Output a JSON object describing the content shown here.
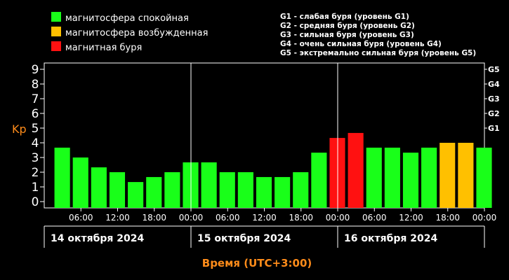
{
  "legend": {
    "items": [
      {
        "label": "магнитосфера спокойная",
        "color": "#19ff19"
      },
      {
        "label": "магнитосфера возбужденная",
        "color": "#ffc000"
      },
      {
        "label": "магнитная буря",
        "color": "#ff1111"
      }
    ],
    "storm_scale": [
      "G1 - слабая буря (уровень G1)",
      "G2 - средняя буря (уровень G2)",
      "G3 - сильная буря (уровень G3)",
      "G4 - очень сильная буря (уровень G4)",
      "G5 - экстремально сильная буря (уровень G5)"
    ]
  },
  "chart_data": {
    "type": "bar",
    "ylabel": "Kp",
    "xlabel": "Время (UTC+3:00)",
    "ylim": [
      0,
      9
    ],
    "y_ticks": [
      "0",
      "1",
      "2",
      "3",
      "4",
      "5",
      "6",
      "7",
      "8",
      "9"
    ],
    "right_ticks": [
      {
        "label": "G1",
        "y": 5
      },
      {
        "label": "G2",
        "y": 6
      },
      {
        "label": "G3",
        "y": 7
      },
      {
        "label": "G4",
        "y": 8
      },
      {
        "label": "G5",
        "y": 9
      }
    ],
    "x_ticks": [
      "06:00",
      "12:00",
      "18:00",
      "00:00",
      "06:00",
      "12:00",
      "18:00",
      "00:00",
      "06:00",
      "12:00",
      "18:00",
      "00:00"
    ],
    "days": [
      "14 октября 2024",
      "15 октября 2024",
      "16 октября 2024"
    ],
    "bars_per_day": 8,
    "values": [
      3.67,
      3.0,
      2.33,
      2.0,
      1.33,
      1.67,
      2.0,
      2.67,
      2.67,
      2.0,
      2.0,
      1.67,
      1.67,
      2.0,
      3.33,
      4.33,
      4.67,
      3.67,
      3.67,
      3.33,
      3.67,
      4.0,
      4.0,
      3.67
    ],
    "colors": [
      "#19ff19",
      "#19ff19",
      "#19ff19",
      "#19ff19",
      "#19ff19",
      "#19ff19",
      "#19ff19",
      "#19ff19",
      "#19ff19",
      "#19ff19",
      "#19ff19",
      "#19ff19",
      "#19ff19",
      "#19ff19",
      "#19ff19",
      "#ff1111",
      "#ff1111",
      "#19ff19",
      "#19ff19",
      "#19ff19",
      "#19ff19",
      "#ffc000",
      "#ffc000",
      "#19ff19"
    ],
    "grid": false
  },
  "colors": {
    "axis": "#ffffff",
    "label_orange": "#ff8c1a"
  }
}
